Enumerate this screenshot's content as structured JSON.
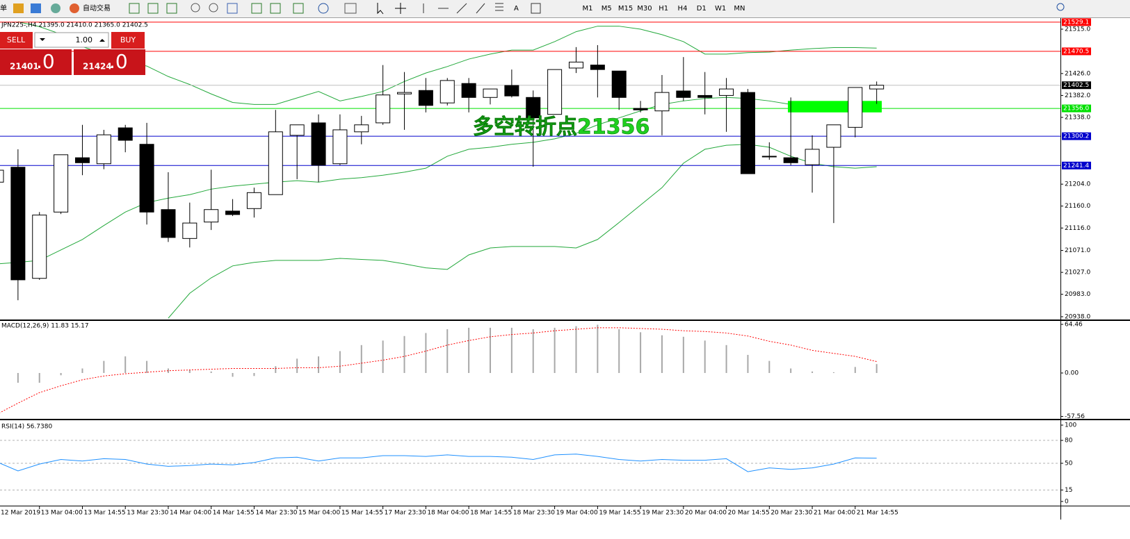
{
  "toolbar": {
    "menu_stub": "单",
    "autotrade": "自动交易",
    "timeframes": [
      "M1",
      "M5",
      "M15",
      "M30",
      "H1",
      "H4",
      "D1",
      "W1",
      "MN"
    ]
  },
  "trade_panel": {
    "sell": "SELL",
    "lot": "1.00",
    "buy": "BUY",
    "bid_main": "21401",
    "bid_frac": ".0",
    "ask_main": "21424",
    "ask_frac": ".0"
  },
  "chart_data": [
    {
      "type": "candlestick",
      "title": "JPN225-,H4  21395.0 21410.0 21365.0 21402.5",
      "categories": [
        "12 Mar 2019",
        null,
        "13 Mar 04:00",
        null,
        "13 Mar 14:55",
        null,
        "13 Mar 23:30",
        null,
        "14 Mar 04:00",
        null,
        "14 Mar 14:55",
        null,
        "14 Mar 23:30",
        null,
        "15 Mar 04:00",
        null,
        "15 Mar 14:55",
        null,
        "17 Mar 23:30",
        null,
        "18 Mar 04:00",
        null,
        "18 Mar 14:55",
        null,
        "18 Mar 23:30",
        null,
        "19 Mar 04:00",
        null,
        "19 Mar 14:55",
        null,
        "19 Mar 23:30",
        null,
        "20 Mar 04:00",
        null,
        "20 Mar 14:55",
        null,
        "20 Mar 23:30",
        null,
        "21 Mar 04:00",
        null,
        "21 Mar 14:55",
        null
      ],
      "open": [
        21208,
        21238,
        21015,
        21148,
        21257,
        21245,
        21317,
        21284,
        21153,
        21095,
        21128,
        21150,
        21155,
        21183,
        21302,
        21327,
        21245,
        21309,
        21327,
        21385,
        21392,
        21367,
        21406,
        21378,
        21402,
        21378,
        21344,
        21437,
        21443,
        21431,
        21356,
        21351,
        21391,
        21382,
        21382,
        21388,
        21260,
        21257,
        21243,
        21278,
        21318,
        21395
      ],
      "high": [
        21232,
        21274,
        21148,
        21263,
        21323,
        21313,
        21323,
        21327,
        21228,
        21167,
        21233,
        21174,
        21197,
        21353,
        21323,
        21344,
        21344,
        21341,
        21443,
        21429,
        21417,
        21417,
        21417,
        21395,
        21434,
        21392,
        21434,
        21479,
        21483,
        21431,
        21371,
        21423,
        21459,
        21429,
        21417,
        21395,
        21288,
        21378,
        21302,
        21323,
        21398,
        21410
      ],
      "low": [
        21208,
        20971,
        21012,
        21144,
        21222,
        21234,
        21268,
        21123,
        21088,
        21077,
        21112,
        21140,
        21137,
        21183,
        21214,
        21208,
        21242,
        21284,
        21323,
        21313,
        21348,
        21362,
        21348,
        21364,
        21378,
        21239,
        21344,
        21427,
        21378,
        21353,
        21348,
        21302,
        21371,
        21344,
        21309,
        21225,
        21253,
        21242,
        21187,
        21126,
        21298,
        21365
      ],
      "close": [
        21232,
        21012,
        21142,
        21263,
        21247,
        21303,
        21292,
        21148,
        21097,
        21126,
        21153,
        21143,
        21187,
        21309,
        21323,
        21242,
        21313,
        21323,
        21383,
        21388,
        21362,
        21412,
        21378,
        21395,
        21381,
        21337,
        21434,
        21449,
        21434,
        21378,
        21353,
        21388,
        21378,
        21378,
        21395,
        21225,
        21260,
        21247,
        21274,
        21323,
        21398,
        21402.5
      ],
      "up_color": "#ffffff",
      "down_color": "#000000",
      "ylim": [
        20932.4,
        21535.9
      ],
      "yticks": [
        {
          "value": 21515,
          "label": "21515.0"
        },
        {
          "value": 21426,
          "label": "21426.0"
        },
        {
          "value": 21382,
          "label": "21382.0"
        },
        {
          "value": 21338,
          "label": "21338.0"
        },
        {
          "value": 21204,
          "label": "21204.0"
        },
        {
          "value": 21160,
          "label": "21160.0"
        },
        {
          "value": 21116,
          "label": "21116.0"
        },
        {
          "value": 21071,
          "label": "21071.0"
        },
        {
          "value": 21027,
          "label": "21027.0"
        },
        {
          "value": 20983,
          "label": "20983.0"
        },
        {
          "value": 20938,
          "label": "20938.0"
        }
      ],
      "levels": [
        {
          "value": 21529.1,
          "color": "#ff0000"
        },
        {
          "value": 21470.5,
          "color": "#ff0000"
        },
        {
          "value": 21402.5,
          "color": "#c0c0c0",
          "tag_color": "#000000"
        },
        {
          "value": 21356.0,
          "label": "21356.0",
          "color": "#00e000"
        },
        {
          "value": 21300.2,
          "color": "#0000cc"
        },
        {
          "value": 21241.4,
          "color": "#0000cc"
        }
      ],
      "bands": {
        "color": "#22a83a",
        "upper": [
          null,
          21530,
          21520,
          21505,
          21480,
          21465,
          21450,
          21441,
          21420,
          21404,
          21385,
          21368,
          21364,
          21364,
          21377,
          21390,
          21371,
          21380,
          21390,
          21410,
          21427,
          21440,
          21455,
          21465,
          21473,
          21473,
          21490,
          21510,
          21521,
          21521,
          21515,
          21504,
          21490,
          21465,
          21465,
          21468,
          21469,
          21473,
          21476,
          21478,
          21478,
          21477
        ],
        "middle": [
          21044,
          21047,
          21051,
          21072,
          21093,
          21121,
          21148,
          21167,
          21176,
          21183,
          21194,
          21200,
          21204,
          21208,
          21211,
          21208,
          21214,
          21217,
          21222,
          21228,
          21236,
          21260,
          21274,
          21278,
          21284,
          21288,
          21295,
          21306,
          21323,
          21337,
          21351,
          21364,
          21371,
          21376,
          21378,
          21376,
          21371,
          21364,
          21358,
          21353,
          21353,
          21356
        ],
        "lower": [
          null,
          null,
          null,
          null,
          null,
          null,
          null,
          null,
          20935,
          20985,
          21016,
          21040,
          21047,
          21051,
          21051,
          21051,
          21055,
          21053,
          21051,
          21044,
          21036,
          21033,
          21062,
          21076,
          21079,
          21079,
          21079,
          21076,
          21093,
          21127,
          21162,
          21197,
          21246,
          21274,
          21282,
          21284,
          21278,
          21260,
          21246,
          21239,
          21236,
          21239
        ]
      },
      "zone": {
        "low": 21348,
        "high": 21371,
        "color": "#00ff00"
      },
      "annotation": {
        "text": "多空转折点21356",
        "color": "#1fcf1f"
      }
    },
    {
      "type": "macd",
      "title": "MACD(12,26,9) 11.83 15.17",
      "values": [
        null,
        -13,
        -13,
        -3,
        6,
        16,
        22,
        16,
        6,
        4,
        2,
        -5,
        -4,
        9,
        19,
        22,
        29,
        37,
        43,
        49,
        53,
        58,
        60,
        60,
        60,
        58,
        60,
        62,
        64,
        58,
        54,
        50,
        48,
        43,
        37,
        24,
        16,
        6,
        2,
        1,
        8,
        11.83
      ],
      "signal": [
        -55,
        -40,
        -26,
        -17,
        -9,
        -4,
        -1,
        1,
        3,
        4,
        5,
        6,
        6,
        6,
        7,
        7,
        9,
        13,
        17,
        22,
        29,
        37,
        43,
        48,
        51,
        53,
        56,
        58,
        60,
        60,
        59,
        58,
        56,
        55,
        53,
        49,
        42,
        37,
        30,
        26,
        22,
        15.17
      ],
      "color": "#a8a8a8",
      "signal_color": "#ff0000",
      "ylim": [
        -60.8,
        69.06
      ],
      "yticks": [
        64.46,
        {
          "value": 0,
          "label": "0.00"
        },
        -57.56
      ]
    },
    {
      "type": "rsi",
      "title": "RSI(14) 56.7380",
      "values": [
        52,
        40,
        49,
        55,
        53,
        56,
        55,
        49,
        46,
        47,
        49,
        48,
        51,
        57,
        58,
        53,
        57,
        57,
        60,
        60,
        59,
        61,
        59,
        59,
        58,
        55,
        61,
        62,
        59,
        55,
        53,
        55,
        54,
        54,
        56,
        39,
        44,
        42,
        44,
        49,
        57,
        56.738
      ],
      "color": "#1e90ff",
      "ylim": [
        -5.5,
        106.4
      ],
      "yticks": [
        100,
        80,
        50,
        15,
        0
      ],
      "levels": [
        80,
        50,
        15
      ]
    }
  ]
}
